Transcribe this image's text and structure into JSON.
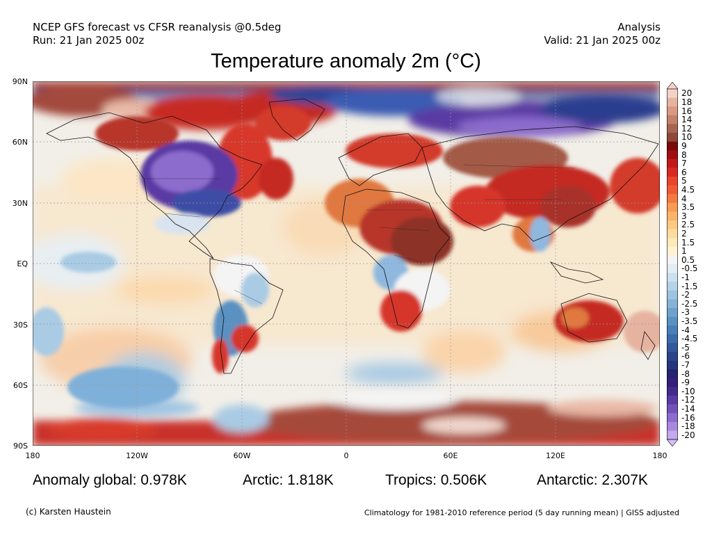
{
  "header": {
    "line1_left": "NCEP GFS forecast vs CFSR reanalysis @0.5deg",
    "line2_left": "Run: 21 Jan 2025 00z",
    "line1_right": "Analysis",
    "line2_right": "Valid: 21 Jan 2025 00z"
  },
  "title": "Temperature anomaly 2m (°C)",
  "map": {
    "lat_labels": [
      "90N",
      "60N",
      "30N",
      "EQ",
      "30S",
      "60S",
      "90S"
    ],
    "lon_labels": [
      "180",
      "120W",
      "60W",
      "0",
      "60E",
      "120E",
      "180"
    ]
  },
  "colorbar": {
    "labels": [
      "20",
      "18",
      "16",
      "14",
      "12",
      "10",
      "9",
      "8",
      "7",
      "6",
      "5",
      "4.5",
      "4",
      "3.5",
      "3",
      "2.5",
      "2",
      "1.5",
      "1",
      "0.5",
      "-0.5",
      "-1",
      "-1.5",
      "-2",
      "-2.5",
      "-3",
      "-3.5",
      "-4",
      "-4.5",
      "-5",
      "-6",
      "-7",
      "-8",
      "-9",
      "-10",
      "-12",
      "-14",
      "-16",
      "-18",
      "-20"
    ],
    "colors": [
      "#f3d3c8",
      "#e6b3a0",
      "#d89a84",
      "#c3806a",
      "#a86450",
      "#8c4a3a",
      "#7a0a0a",
      "#a00f0f",
      "#c21a1a",
      "#d92a22",
      "#e8452c",
      "#f05a35",
      "#f47a42",
      "#f79a55",
      "#f9b46a",
      "#fbc982",
      "#fddc9c",
      "#fee9b8",
      "#fff3d4",
      "#f4f4f4",
      "#e1ecf4",
      "#cde0ee",
      "#b4d2e8",
      "#9cc3e0",
      "#85b3d7",
      "#6ea2cd",
      "#5a91c2",
      "#4a7eb6",
      "#3d6aa8",
      "#33579a",
      "#2a458b",
      "#25367d",
      "#262371",
      "#32207a",
      "#432a8c",
      "#5a3aa3",
      "#7351b9",
      "#8c6ccc",
      "#a889dd",
      "#c4a9ee"
    ],
    "top_arrow_color": "#f3d3c8",
    "bottom_arrow_color": "#d4bff5"
  },
  "stats": {
    "global": "Anomaly global: 0.978K",
    "arctic": "Arctic: 1.818K",
    "tropics": "Tropics: 0.506K",
    "antarctic": "Antarctic: 2.307K"
  },
  "footer": {
    "left": "(c) Karsten Haustein",
    "right": "Climatology for 1981-2010 reference period (5 day running mean) | GISS adjusted"
  }
}
